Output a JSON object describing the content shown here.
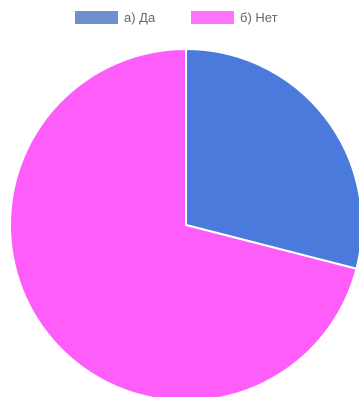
{
  "chart_data": {
    "type": "pie",
    "categories": [
      "а) Да",
      "б) Нет"
    ],
    "values": [
      29,
      71
    ],
    "colors": [
      "#4a7bdc",
      "#ff5dfa"
    ],
    "legend_swatch_colors": [
      "#6f8fce",
      "#ff73fb"
    ],
    "start_angle": "top",
    "direction": "clockwise",
    "legend_position": "top"
  }
}
